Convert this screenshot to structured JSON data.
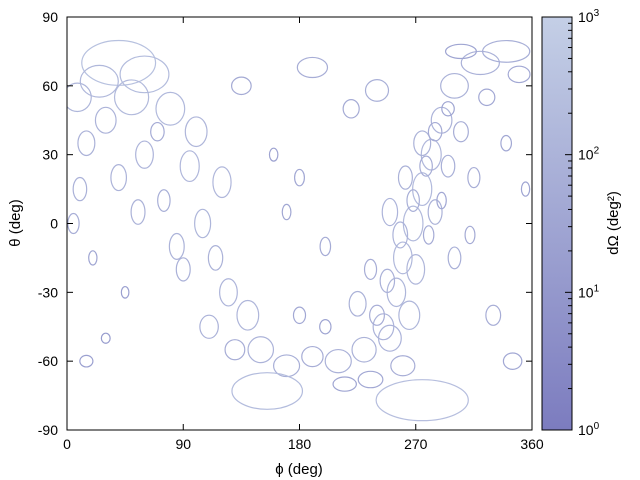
{
  "chart_data": {
    "type": "scatter",
    "xlabel": "ϕ (deg)",
    "ylabel": "θ (deg)",
    "xlim": [
      0,
      360
    ],
    "ylim": [
      -90,
      90
    ],
    "xticks": [
      "0",
      "90",
      "180",
      "270",
      "360"
    ],
    "yticks": [
      "90",
      "60",
      "30",
      "0",
      "-30",
      "-60",
      "-90"
    ],
    "grid": false,
    "colorbar": {
      "label": "dΩ (deg²)",
      "scale": "log",
      "range": [
        1,
        1000
      ],
      "ticks": [
        "10^3",
        "10^2",
        "10^1",
        "10^0"
      ],
      "color_low": "#7c7cbf",
      "color_high": "#c4cfe6"
    },
    "marker": "ellipse outline, size ∝ dΩ",
    "points": [
      {
        "phi": 40,
        "theta": 70,
        "dOmega": 300
      },
      {
        "phi": 60,
        "theta": 65,
        "dOmega": 200
      },
      {
        "phi": 25,
        "theta": 62,
        "dOmega": 150
      },
      {
        "phi": 8,
        "theta": 55,
        "dOmega": 120
      },
      {
        "phi": 50,
        "theta": 55,
        "dOmega": 180
      },
      {
        "phi": 30,
        "theta": 45,
        "dOmega": 100
      },
      {
        "phi": 80,
        "theta": 50,
        "dOmega": 160
      },
      {
        "phi": 15,
        "theta": 35,
        "dOmega": 90
      },
      {
        "phi": 60,
        "theta": 30,
        "dOmega": 110
      },
      {
        "phi": 100,
        "theta": 40,
        "dOmega": 130
      },
      {
        "phi": 40,
        "theta": 20,
        "dOmega": 100
      },
      {
        "phi": 10,
        "theta": 15,
        "dOmega": 80
      },
      {
        "phi": 95,
        "theta": 25,
        "dOmega": 140
      },
      {
        "phi": 75,
        "theta": 10,
        "dOmega": 70
      },
      {
        "phi": 55,
        "theta": 5,
        "dOmega": 90
      },
      {
        "phi": 105,
        "theta": 0,
        "dOmega": 120
      },
      {
        "phi": 85,
        "theta": -10,
        "dOmega": 100
      },
      {
        "phi": 115,
        "theta": -15,
        "dOmega": 90
      },
      {
        "phi": 125,
        "theta": -30,
        "dOmega": 110
      },
      {
        "phi": 140,
        "theta": -40,
        "dOmega": 130
      },
      {
        "phi": 110,
        "theta": -45,
        "dOmega": 80
      },
      {
        "phi": 150,
        "theta": -55,
        "dOmega": 100
      },
      {
        "phi": 130,
        "theta": -55,
        "dOmega": 60
      },
      {
        "phi": 170,
        "theta": -62,
        "dOmega": 70
      },
      {
        "phi": 190,
        "theta": -58,
        "dOmega": 60
      },
      {
        "phi": 210,
        "theta": -60,
        "dOmega": 80
      },
      {
        "phi": 230,
        "theta": -55,
        "dOmega": 90
      },
      {
        "phi": 245,
        "theta": -45,
        "dOmega": 100
      },
      {
        "phi": 255,
        "theta": -30,
        "dOmega": 120
      },
      {
        "phi": 260,
        "theta": -15,
        "dOmega": 150
      },
      {
        "phi": 268,
        "theta": 0,
        "dOmega": 180
      },
      {
        "phi": 275,
        "theta": 15,
        "dOmega": 160
      },
      {
        "phi": 282,
        "theta": 30,
        "dOmega": 140
      },
      {
        "phi": 290,
        "theta": 45,
        "dOmega": 100
      },
      {
        "phi": 300,
        "theta": 60,
        "dOmega": 90
      },
      {
        "phi": 320,
        "theta": 70,
        "dOmega": 80
      },
      {
        "phi": 340,
        "theta": 75,
        "dOmega": 70
      },
      {
        "phi": 155,
        "theta": -73,
        "dOmega": 200
      },
      {
        "phi": 275,
        "theta": -77,
        "dOmega": 250
      },
      {
        "phi": 190,
        "theta": 68,
        "dOmega": 60
      },
      {
        "phi": 120,
        "theta": 18,
        "dOmega": 140
      },
      {
        "phi": 90,
        "theta": -20,
        "dOmega": 80
      },
      {
        "phi": 300,
        "theta": -15,
        "dOmega": 70
      },
      {
        "phi": 330,
        "theta": -40,
        "dOmega": 60
      },
      {
        "phi": 315,
        "theta": 20,
        "dOmega": 60
      },
      {
        "phi": 240,
        "theta": 58,
        "dOmega": 70
      },
      {
        "phi": 220,
        "theta": 50,
        "dOmega": 50
      },
      {
        "phi": 180,
        "theta": 20,
        "dOmega": 40
      },
      {
        "phi": 200,
        "theta": -10,
        "dOmega": 50
      },
      {
        "phi": 225,
        "theta": -35,
        "dOmega": 90
      },
      {
        "phi": 235,
        "theta": -20,
        "dOmega": 60
      },
      {
        "phi": 250,
        "theta": 5,
        "dOmega": 110
      },
      {
        "phi": 262,
        "theta": 20,
        "dOmega": 80
      },
      {
        "phi": 270,
        "theta": -20,
        "dOmega": 130
      },
      {
        "phi": 285,
        "theta": 5,
        "dOmega": 90
      },
      {
        "phi": 295,
        "theta": 25,
        "dOmega": 70
      },
      {
        "phi": 305,
        "theta": 40,
        "dOmega": 60
      },
      {
        "phi": 265,
        "theta": -40,
        "dOmega": 120
      },
      {
        "phi": 250,
        "theta": -50,
        "dOmega": 100
      },
      {
        "phi": 280,
        "theta": -5,
        "dOmega": 50
      },
      {
        "phi": 290,
        "theta": 10,
        "dOmega": 40
      },
      {
        "phi": 295,
        "theta": 50,
        "dOmega": 30
      },
      {
        "phi": 350,
        "theta": 65,
        "dOmega": 40
      },
      {
        "phi": 5,
        "theta": 0,
        "dOmega": 60
      },
      {
        "phi": 20,
        "theta": -15,
        "dOmega": 30
      },
      {
        "phi": 15,
        "theta": -60,
        "dOmega": 20
      },
      {
        "phi": 345,
        "theta": -60,
        "dOmega": 40
      },
      {
        "phi": 180,
        "theta": -40,
        "dOmega": 40
      },
      {
        "phi": 200,
        "theta": -45,
        "dOmega": 30
      },
      {
        "phi": 215,
        "theta": -70,
        "dOmega": 30
      },
      {
        "phi": 235,
        "theta": -68,
        "dOmega": 40
      },
      {
        "phi": 260,
        "theta": -62,
        "dOmega": 60
      },
      {
        "phi": 355,
        "theta": 15,
        "dOmega": 30
      },
      {
        "phi": 160,
        "theta": 30,
        "dOmega": 25
      },
      {
        "phi": 170,
        "theta": 5,
        "dOmega": 35
      },
      {
        "phi": 70,
        "theta": 40,
        "dOmega": 50
      },
      {
        "phi": 135,
        "theta": 60,
        "dOmega": 45
      },
      {
        "phi": 45,
        "theta": -30,
        "dOmega": 20
      },
      {
        "phi": 30,
        "theta": -50,
        "dOmega": 15
      },
      {
        "phi": 305,
        "theta": 75,
        "dOmega": 30
      },
      {
        "phi": 325,
        "theta": 55,
        "dOmega": 40
      },
      {
        "phi": 340,
        "theta": 35,
        "dOmega": 35
      },
      {
        "phi": 312,
        "theta": -5,
        "dOmega": 45
      },
      {
        "phi": 275,
        "theta": 35,
        "dOmega": 90
      },
      {
        "phi": 258,
        "theta": -5,
        "dOmega": 100
      },
      {
        "phi": 248,
        "theta": -25,
        "dOmega": 80
      },
      {
        "phi": 240,
        "theta": -40,
        "dOmega": 60
      },
      {
        "phi": 268,
        "theta": 10,
        "dOmega": 70
      },
      {
        "phi": 278,
        "theta": 25,
        "dOmega": 60
      },
      {
        "phi": 285,
        "theta": 40,
        "dOmega": 50
      }
    ]
  }
}
